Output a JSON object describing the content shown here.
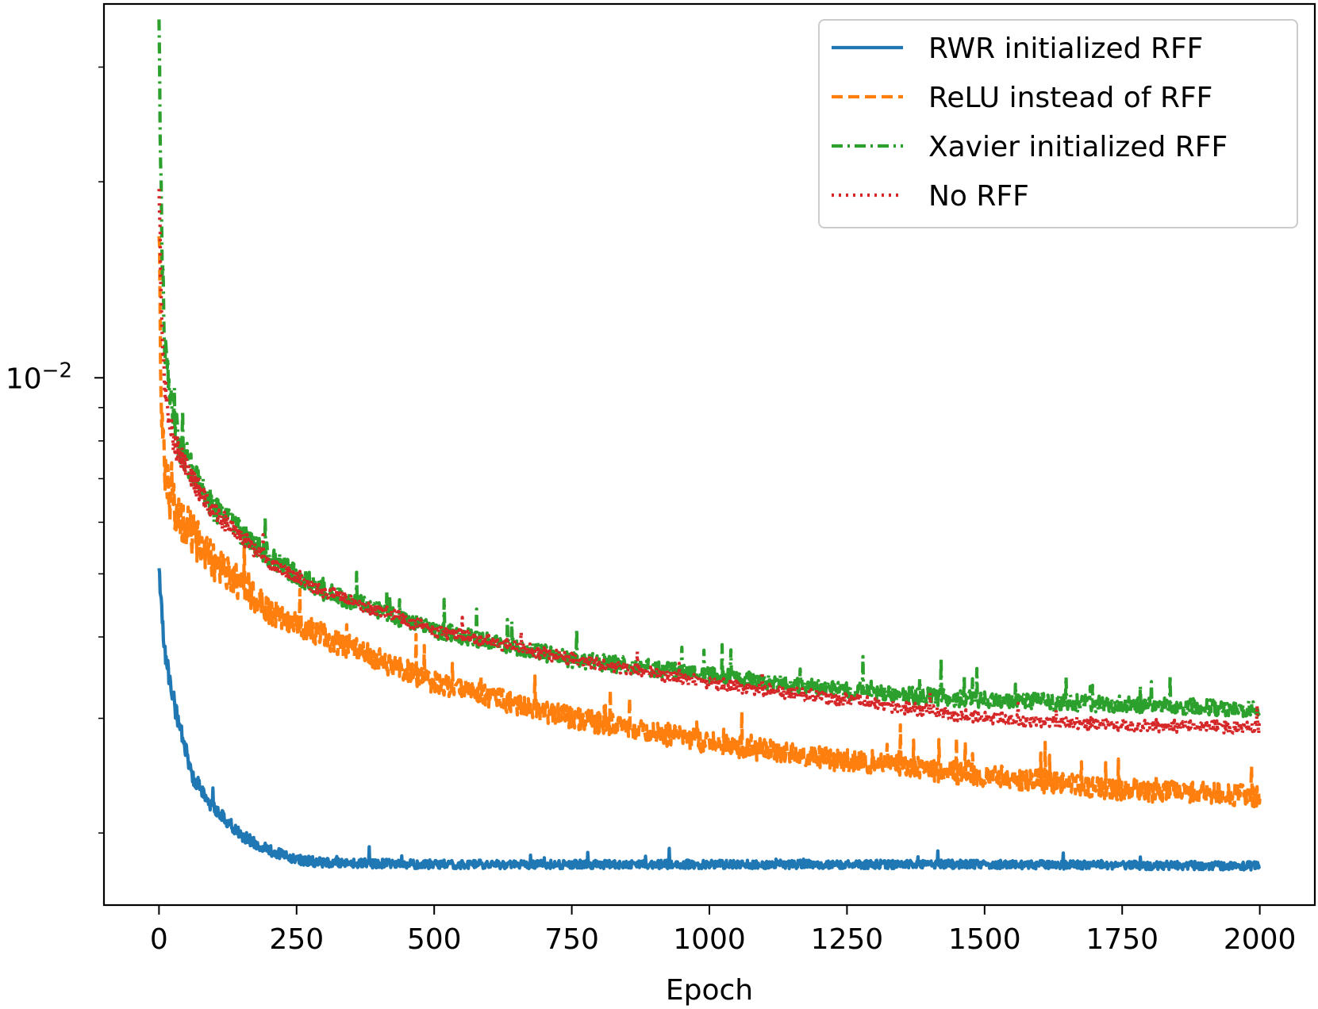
{
  "chart_data": {
    "type": "line",
    "title": "",
    "xlabel": "Epoch",
    "ylabel": "",
    "yscale": "log",
    "xlim": [
      -100,
      2100
    ],
    "ylim": [
      0.00155,
      0.0375
    ],
    "xticks": [
      0,
      250,
      500,
      750,
      1000,
      1250,
      1500,
      1750,
      2000
    ],
    "xtick_labels": [
      "0",
      "250",
      "500",
      "750",
      "1000",
      "1250",
      "1500",
      "1750",
      "2000"
    ],
    "ytick_major": [
      {
        "value": 0.01,
        "base": "10",
        "exp": "−2"
      }
    ],
    "ytick_minor": [
      0.002,
      0.003,
      0.004,
      0.005,
      0.006,
      0.007,
      0.008,
      0.009,
      0.02,
      0.03
    ],
    "grid": false,
    "legend_position": "upper-right",
    "series": [
      {
        "name": "RWR initialized RFF",
        "color": "#1f77b4",
        "style": "solid",
        "keypoints": [
          [
            0,
            0.0051
          ],
          [
            10,
            0.0038
          ],
          [
            30,
            0.0031
          ],
          [
            60,
            0.00245
          ],
          [
            100,
            0.00218
          ],
          [
            150,
            0.00198
          ],
          [
            200,
            0.00188
          ],
          [
            250,
            0.00182
          ],
          [
            300,
            0.0018
          ],
          [
            500,
            0.00179
          ],
          [
            1000,
            0.00179
          ],
          [
            1500,
            0.00179
          ],
          [
            2000,
            0.00178
          ]
        ],
        "noise": 0.015,
        "spike_prob": 0.01,
        "spike": 0.05
      },
      {
        "name": "ReLU instead of RFF",
        "color": "#ff7f0e",
        "style": "dashed",
        "keypoints": [
          [
            0,
            0.0165
          ],
          [
            5,
            0.0085
          ],
          [
            10,
            0.0072
          ],
          [
            20,
            0.0066
          ],
          [
            50,
            0.0059
          ],
          [
            100,
            0.0052
          ],
          [
            150,
            0.0048
          ],
          [
            200,
            0.0044
          ],
          [
            300,
            0.004
          ],
          [
            500,
            0.0034
          ],
          [
            750,
            0.003
          ],
          [
            1000,
            0.00275
          ],
          [
            1250,
            0.00258
          ],
          [
            1500,
            0.00245
          ],
          [
            1750,
            0.00233
          ],
          [
            2000,
            0.00228
          ]
        ],
        "noise": 0.04,
        "spike_prob": 0.025,
        "spike": 0.12
      },
      {
        "name": "Xavier initialized RFF",
        "color": "#2ca02c",
        "style": "dashdot",
        "keypoints": [
          [
            0,
            0.0355
          ],
          [
            3,
            0.0208
          ],
          [
            6,
            0.015
          ],
          [
            10,
            0.0115
          ],
          [
            20,
            0.0092
          ],
          [
            40,
            0.0078
          ],
          [
            70,
            0.007
          ],
          [
            100,
            0.0063
          ],
          [
            150,
            0.0058
          ],
          [
            200,
            0.0053
          ],
          [
            300,
            0.0047
          ],
          [
            500,
            0.0041
          ],
          [
            750,
            0.0037
          ],
          [
            1000,
            0.0035
          ],
          [
            1250,
            0.0033
          ],
          [
            1500,
            0.0032
          ],
          [
            1750,
            0.00315
          ],
          [
            2000,
            0.0031
          ]
        ],
        "noise": 0.03,
        "spike_prob": 0.02,
        "spike": 0.12
      },
      {
        "name": "No RFF",
        "color": "#d62728",
        "style": "dotted",
        "keypoints": [
          [
            0,
            0.0195
          ],
          [
            4,
            0.0135
          ],
          [
            8,
            0.0105
          ],
          [
            15,
            0.009
          ],
          [
            30,
            0.0078
          ],
          [
            60,
            0.007
          ],
          [
            100,
            0.0062
          ],
          [
            150,
            0.0057
          ],
          [
            200,
            0.0052
          ],
          [
            300,
            0.0047
          ],
          [
            500,
            0.0041
          ],
          [
            750,
            0.0037
          ],
          [
            1000,
            0.0034
          ],
          [
            1250,
            0.0032
          ],
          [
            1500,
            0.003
          ],
          [
            1750,
            0.00293
          ],
          [
            2000,
            0.0029
          ]
        ],
        "noise": 0.022,
        "spike_prob": 0.012,
        "spike": 0.08
      }
    ]
  }
}
